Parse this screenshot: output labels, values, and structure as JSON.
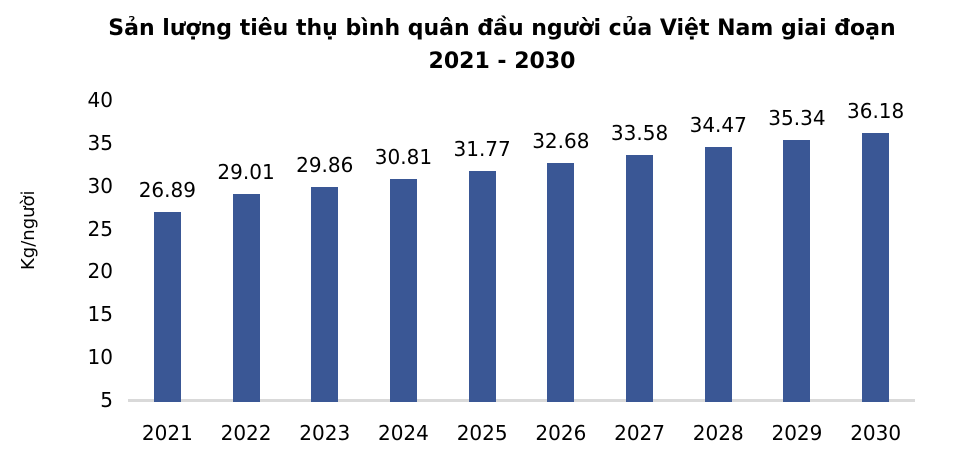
{
  "chart_data": {
    "type": "bar",
    "title": "Sản lượng tiêu thụ bình quân đầu người của Việt Nam giai đoạn 2021 - 2030",
    "title_lines": [
      "Sản lượng tiêu thụ bình quân đầu người của Việt Nam giai đoạn",
      "2021 - 2030"
    ],
    "ylabel": "Kg/người",
    "xlabel": "",
    "categories": [
      "2021",
      "2022",
      "2023",
      "2024",
      "2025",
      "2026",
      "2027",
      "2028",
      "2029",
      "2030"
    ],
    "values": [
      26.89,
      29.01,
      29.86,
      30.81,
      31.77,
      32.68,
      33.58,
      34.47,
      35.34,
      36.18
    ],
    "ylim": [
      5,
      40
    ],
    "yticks": [
      40,
      35,
      30,
      25,
      20,
      15,
      10,
      5
    ],
    "grid": false,
    "legend": "none",
    "data_labels": true,
    "bar_color": "#3A5795",
    "axis_line_color": "#D9D9D9",
    "text_color": "#000000",
    "background_color": "#FFFFFF"
  }
}
